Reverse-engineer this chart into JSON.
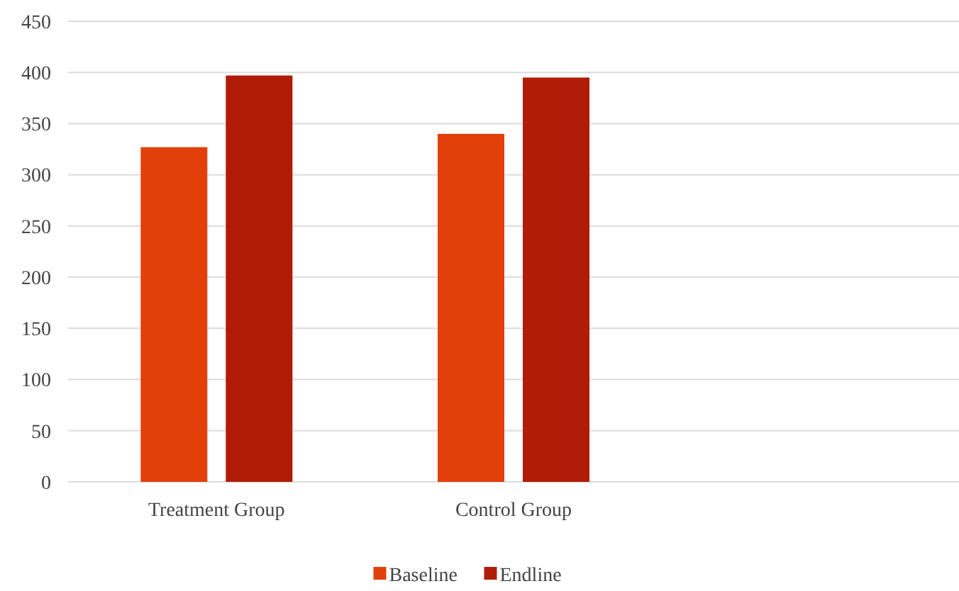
{
  "chart_data": {
    "type": "bar",
    "categories": [
      "Treatment Group",
      "Control Group",
      null
    ],
    "series": [
      {
        "name": "Baseline",
        "color": "#e2400a",
        "values": [
          327,
          340,
          null
        ]
      },
      {
        "name": "Endline",
        "color": "#b01c08",
        "values": [
          397,
          395,
          null
        ]
      }
    ],
    "ylim": [
      0,
      450
    ],
    "yticks": [
      0,
      50,
      100,
      150,
      200,
      250,
      300,
      350,
      400,
      450
    ],
    "grid": "y",
    "legend": "bottom"
  }
}
